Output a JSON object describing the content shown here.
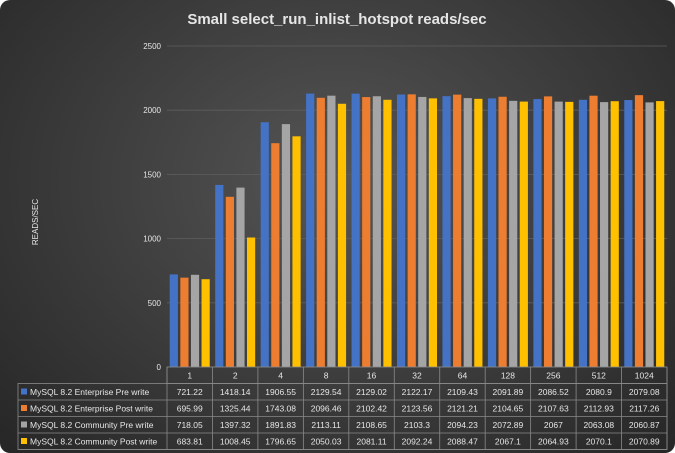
{
  "chart_data": {
    "type": "bar",
    "title": "Small select_run_inlist_hotspot   reads/sec",
    "xlabel": "",
    "ylabel": "READS/SEC",
    "ylim": [
      0,
      2500
    ],
    "yticks": [
      0,
      500,
      1000,
      1500,
      2000,
      2500
    ],
    "grid": true,
    "legend": "data-table-bottom",
    "categories": [
      "1",
      "2",
      "4",
      "8",
      "16",
      "32",
      "64",
      "128",
      "256",
      "512",
      "1024"
    ],
    "series": [
      {
        "name": "MySQL 8.2 Enterprise Pre write",
        "color": "#4472C4",
        "values": [
          721.22,
          1418.14,
          1906.55,
          2129.54,
          2129.02,
          2122.17,
          2109.43,
          2091.89,
          2086.52,
          2080.9,
          2079.08
        ]
      },
      {
        "name": "MySQL 8.2 Enterprise Post write",
        "color": "#ED7D31",
        "values": [
          695.99,
          1325.44,
          1743.08,
          2096.46,
          2102.42,
          2123.56,
          2121.21,
          2104.65,
          2107.63,
          2112.93,
          2117.26
        ]
      },
      {
        "name": "MySQL 8.2 Community Pre write",
        "color": "#A5A5A5",
        "values": [
          718.05,
          1397.32,
          1891.83,
          2113.11,
          2108.65,
          2103.3,
          2094.23,
          2072.89,
          2067,
          2063.08,
          2060.87
        ]
      },
      {
        "name": "MySQL 8.2 Community Post write",
        "color": "#FFC000",
        "values": [
          683.81,
          1008.45,
          1796.65,
          2050.03,
          2081.11,
          2092.24,
          2088.47,
          2067.1,
          2064.93,
          2070.1,
          2070.89
        ]
      }
    ]
  }
}
